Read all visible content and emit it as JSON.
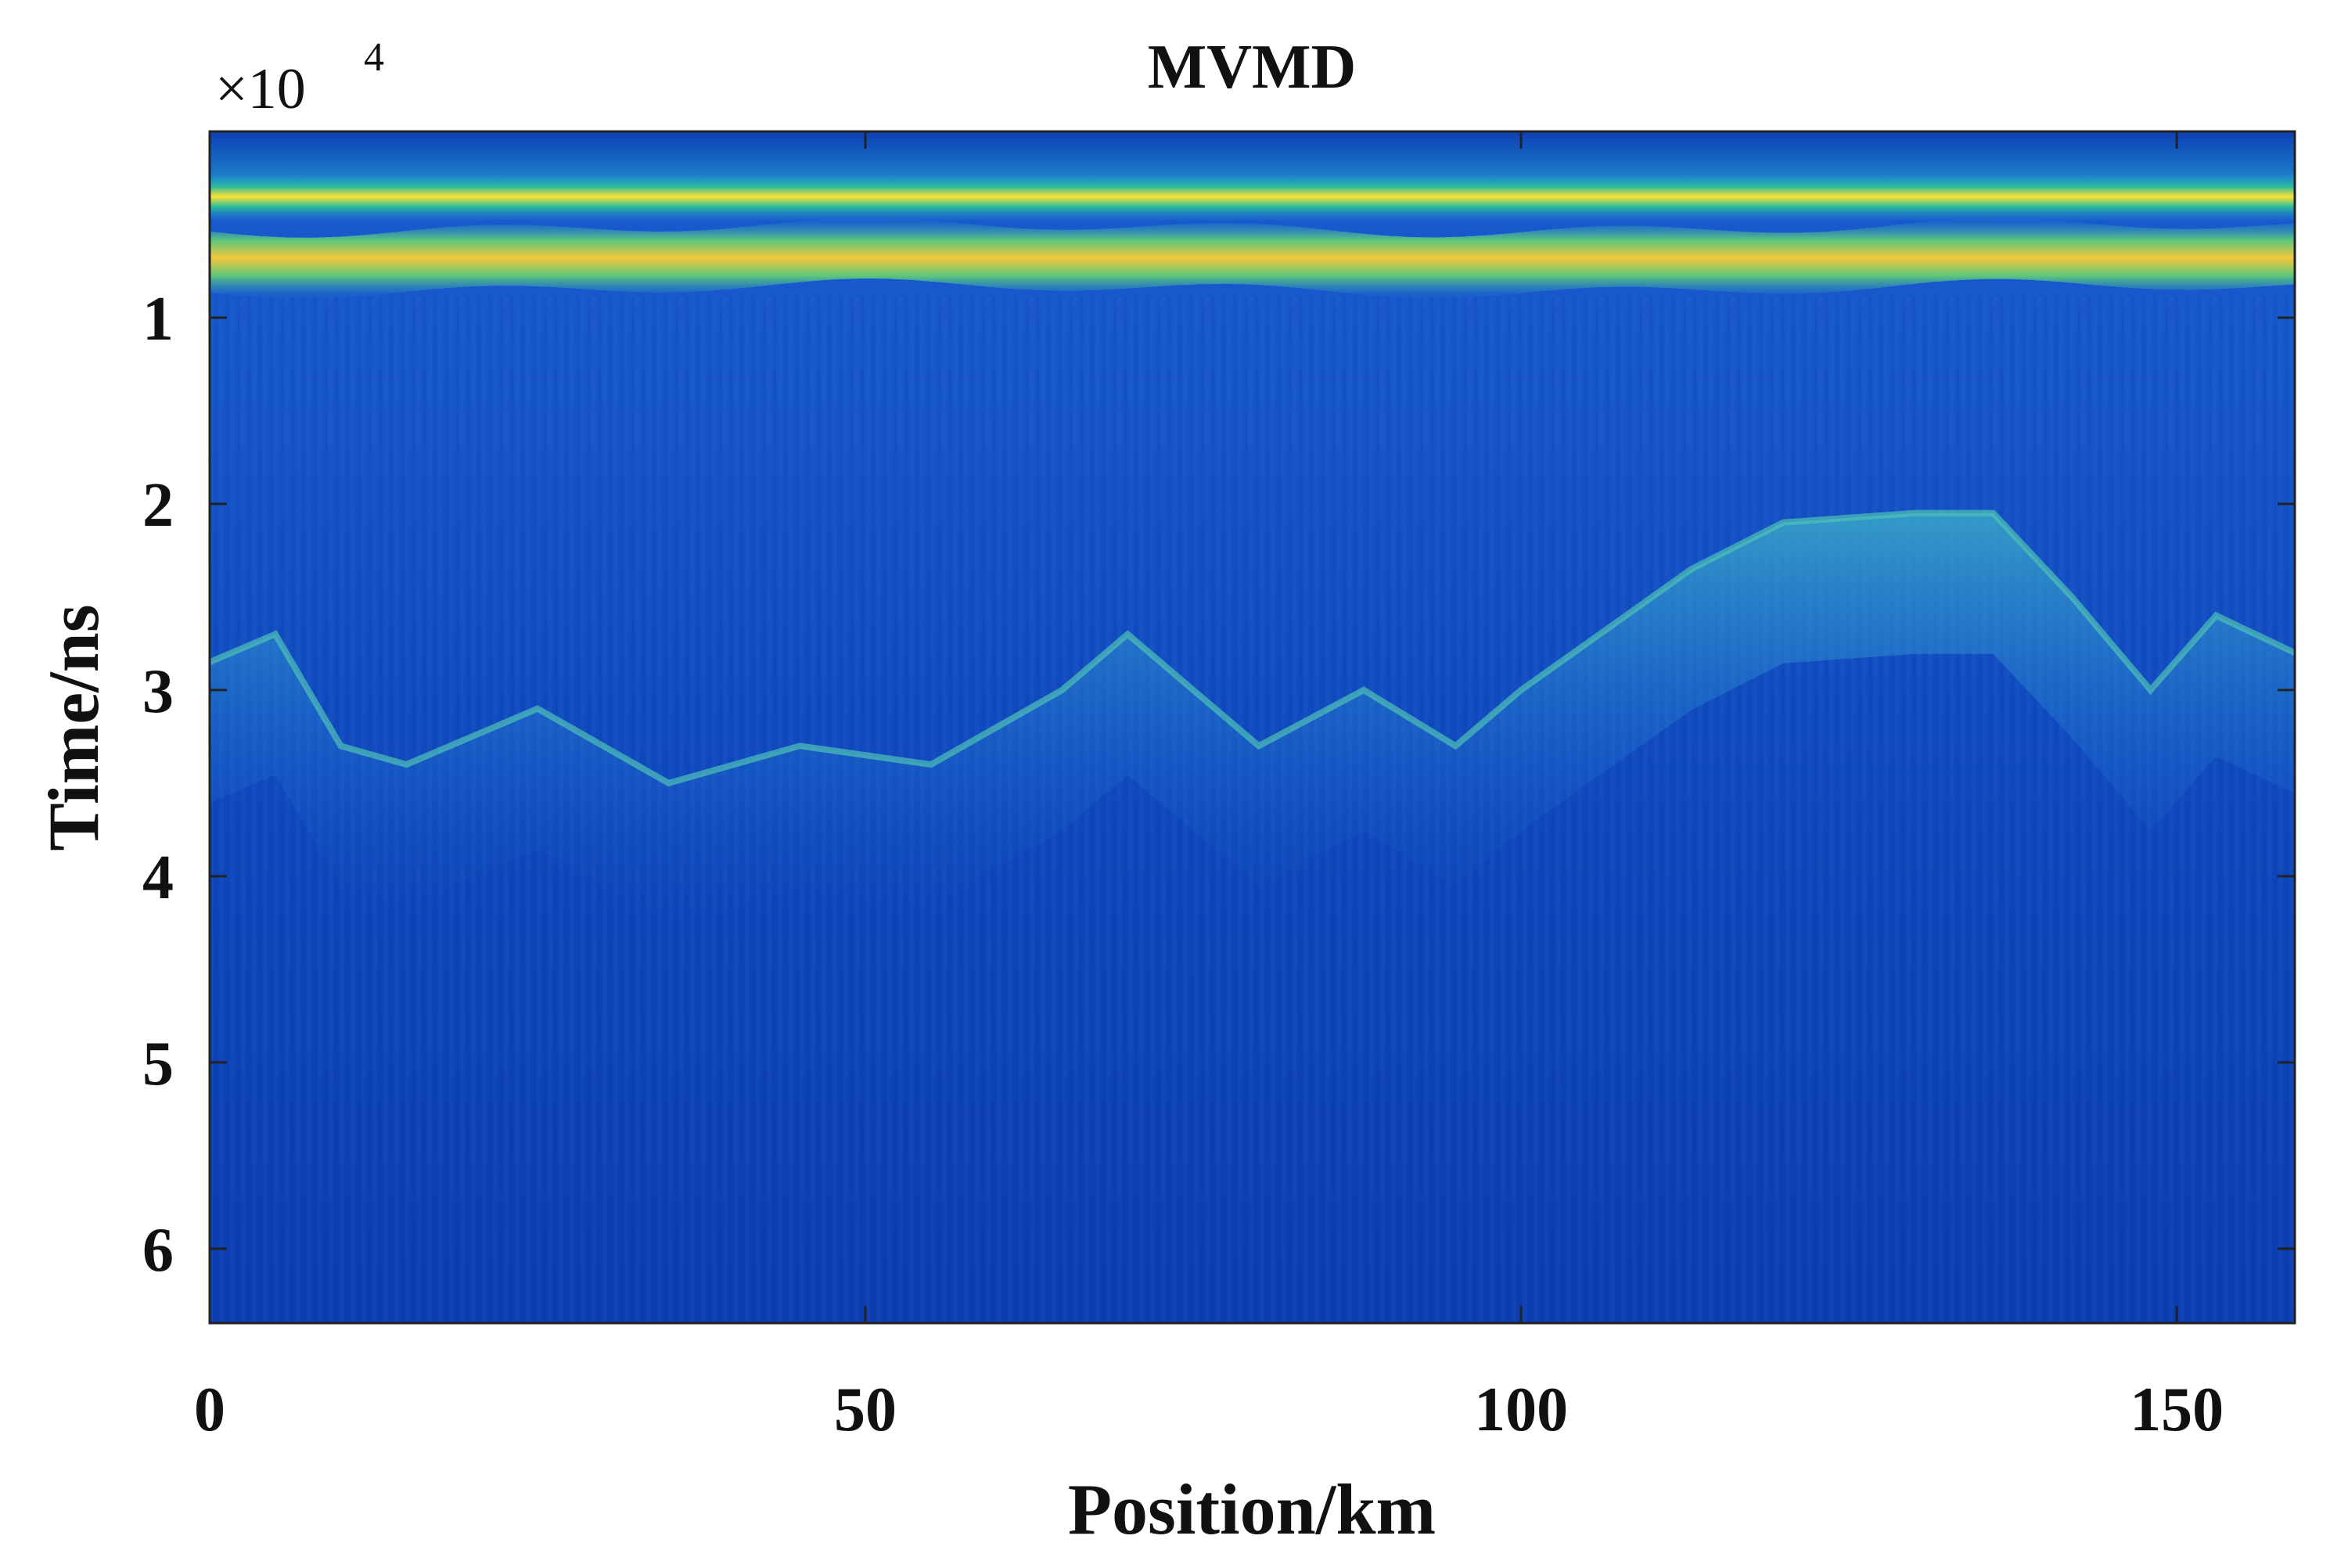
{
  "chart_data": {
    "type": "heatmap",
    "title": "MVMD",
    "xlabel": "Position/km",
    "ylabel": "Time/ns",
    "y_exponent_label": "×10",
    "y_exponent_power": "4",
    "xlim": [
      0,
      159
    ],
    "ylim_scaled": [
      0,
      6.4
    ],
    "y_axis_reversed": true,
    "x_ticks": [
      0,
      50,
      100,
      150
    ],
    "x_tick_labels": [
      "0",
      "50",
      "100",
      "150"
    ],
    "y_ticks": [
      1,
      2,
      3,
      4,
      5,
      6
    ],
    "y_tick_labels": [
      "1",
      "2",
      "3",
      "4",
      "5",
      "6"
    ],
    "colormap": [
      "#0b2fa8",
      "#1a5fd6",
      "#1f8bd0",
      "#25b7a3",
      "#8fd05a",
      "#f4c83a",
      "#ffe135"
    ],
    "bands": [
      {
        "name": "surface reflection 1",
        "time_scaled": 0.35,
        "intensity": 1.0
      },
      {
        "name": "surface reflection 2",
        "time_scaled": 0.68,
        "intensity": 0.95
      }
    ],
    "deep_reflector_time_scaled": [
      [
        0,
        2.85
      ],
      [
        5,
        2.7
      ],
      [
        10,
        3.3
      ],
      [
        15,
        3.4
      ],
      [
        25,
        3.1
      ],
      [
        35,
        3.5
      ],
      [
        45,
        3.3
      ],
      [
        55,
        3.4
      ],
      [
        65,
        3.0
      ],
      [
        70,
        2.7
      ],
      [
        80,
        3.3
      ],
      [
        88,
        3.0
      ],
      [
        95,
        3.3
      ],
      [
        100,
        3.0
      ],
      [
        108,
        2.6
      ],
      [
        113,
        2.35
      ],
      [
        120,
        2.1
      ],
      [
        130,
        2.05
      ],
      [
        136,
        2.05
      ],
      [
        142,
        2.5
      ],
      [
        148,
        3.0
      ],
      [
        153,
        2.6
      ],
      [
        159,
        2.8
      ]
    ]
  }
}
